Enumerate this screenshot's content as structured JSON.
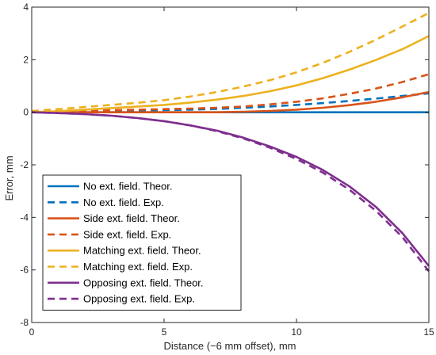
{
  "chart_data": {
    "type": "line",
    "xlabel": "Distance (−6 mm offset), mm",
    "ylabel": "Error, mm",
    "xlim": [
      0,
      15
    ],
    "ylim": [
      -8,
      4
    ],
    "xticks": [
      0,
      5,
      10,
      15
    ],
    "yticks": [
      -8,
      -6,
      -4,
      -2,
      0,
      2,
      4
    ],
    "xtick_labels": [
      "0",
      "5",
      "10",
      "15"
    ],
    "ytick_labels": [
      "-8",
      "-6",
      "-4",
      "-2",
      "0",
      "2",
      "4"
    ],
    "grid": false,
    "legend_position": "bottom-left",
    "x": [
      0,
      1,
      2,
      3,
      4,
      5,
      6,
      7,
      8,
      9,
      10,
      11,
      12,
      13,
      14,
      15
    ],
    "series": [
      {
        "name": "No ext. field. Theor.",
        "color": "#0072BD",
        "dash": "solid",
        "values": [
          0,
          0,
          0,
          0,
          0,
          0,
          0,
          0,
          0,
          0,
          0,
          0,
          0,
          0,
          0,
          0
        ]
      },
      {
        "name": "No ext. field. Exp.",
        "color": "#0072BD",
        "dash": "dashed",
        "values": [
          0.02,
          0.03,
          0.04,
          0.05,
          0.06,
          0.08,
          0.1,
          0.13,
          0.17,
          0.22,
          0.28,
          0.35,
          0.43,
          0.52,
          0.62,
          0.72
        ]
      },
      {
        "name": "Side ext. field. Theor.",
        "color": "#D95319",
        "dash": "solid",
        "values": [
          0,
          0,
          0,
          0,
          0,
          0,
          0,
          0,
          0.02,
          0.05,
          0.1,
          0.17,
          0.27,
          0.4,
          0.57,
          0.77
        ]
      },
      {
        "name": "Side ext. field. Exp.",
        "color": "#D95319",
        "dash": "dashed",
        "values": [
          0.02,
          0.04,
          0.06,
          0.08,
          0.1,
          0.12,
          0.14,
          0.17,
          0.22,
          0.3,
          0.4,
          0.53,
          0.7,
          0.9,
          1.15,
          1.45
        ]
      },
      {
        "name": "Matching ext. field. Theor.",
        "color": "#EDB120",
        "dash": "solid",
        "values": [
          0,
          0.04,
          0.1,
          0.16,
          0.22,
          0.28,
          0.37,
          0.48,
          0.62,
          0.8,
          1.02,
          1.3,
          1.62,
          1.99,
          2.4,
          2.9
        ]
      },
      {
        "name": "Matching ext. field. Exp.",
        "color": "#EDB120",
        "dash": "dashed",
        "values": [
          0.05,
          0.12,
          0.2,
          0.28,
          0.36,
          0.46,
          0.6,
          0.77,
          0.98,
          1.22,
          1.52,
          1.88,
          2.3,
          2.76,
          3.26,
          3.78
        ]
      },
      {
        "name": "Opposing ext. field. Theor.",
        "color": "#7E2F8E",
        "dash": "solid",
        "values": [
          0,
          -0.03,
          -0.07,
          -0.13,
          -0.22,
          -0.34,
          -0.5,
          -0.7,
          -0.97,
          -1.3,
          -1.7,
          -2.2,
          -2.82,
          -3.6,
          -4.6,
          -5.85
        ]
      },
      {
        "name": "Opposing ext. field. Exp.",
        "color": "#7E2F8E",
        "dash": "dashed",
        "values": [
          0,
          -0.03,
          -0.07,
          -0.13,
          -0.22,
          -0.34,
          -0.5,
          -0.72,
          -1.0,
          -1.35,
          -1.78,
          -2.3,
          -2.95,
          -3.75,
          -4.75,
          -6.05
        ]
      }
    ]
  }
}
